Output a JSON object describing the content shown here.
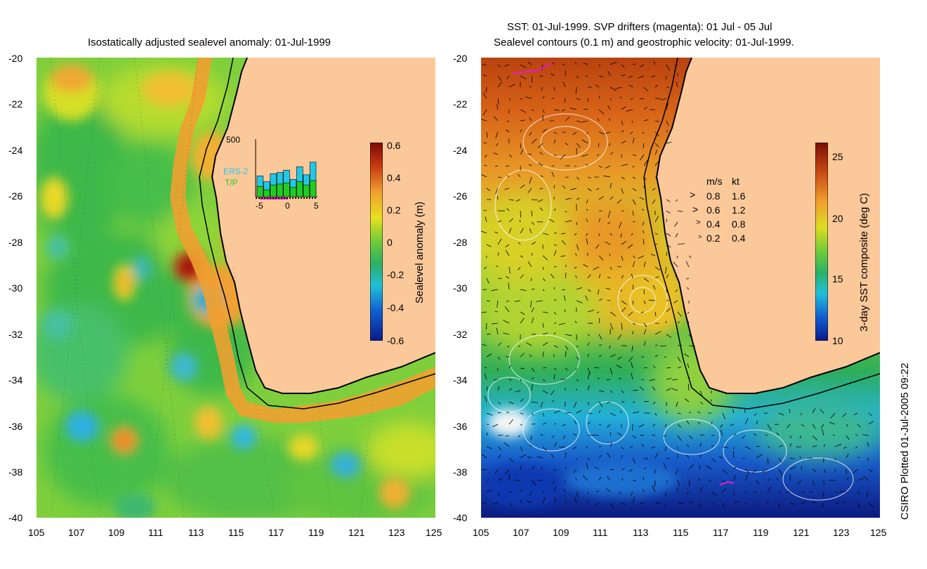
{
  "left_panel": {
    "title": "Isostatically adjusted sealevel anomaly: 01-Jul-1999",
    "colorbar": {
      "label": "Sealevel anomaly (m)",
      "ticks": [
        "0.6",
        "0.4",
        "0.2",
        "0",
        "-0.2",
        "-0.4",
        "-0.6"
      ]
    },
    "inset": {
      "ymax_label": "500",
      "x_ticks": [
        "-5",
        "0",
        "5"
      ],
      "legend": [
        {
          "name": "ERS-2",
          "color": "#22c8e6"
        },
        {
          "name": "T/P",
          "color": "#22cc22"
        }
      ],
      "ers2_counts": [
        180,
        130,
        200,
        210,
        230,
        150,
        260,
        190,
        300
      ],
      "tp_counts": [
        90,
        60,
        100,
        110,
        120,
        80,
        130,
        100,
        140
      ]
    }
  },
  "right_panel": {
    "title_line1": "SST: 01-Jul-1999. SVP drifters (magenta): 01 Jul - 05 Jul",
    "title_line2": "Sealevel contours (0.1 m) and geostrophic velocity: 01-Jul-1999.",
    "colorbar": {
      "label": "3-day SST composite (deg C)",
      "ticks": [
        "25",
        "20",
        "15",
        "10"
      ]
    },
    "velocity_legend": {
      "header_ms": "m/s",
      "header_kt": "kt",
      "rows": [
        {
          "ms": "0.8",
          "kt": "1.6"
        },
        {
          "ms": "0.6",
          "kt": "1.2"
        },
        {
          "ms": "0.4",
          "kt": "0.8"
        },
        {
          "ms": "0.2",
          "kt": "0.4"
        }
      ]
    }
  },
  "axes": {
    "lat_ticks": [
      "-20",
      "-22",
      "-24",
      "-26",
      "-28",
      "-30",
      "-32",
      "-34",
      "-36",
      "-38",
      "-40"
    ],
    "lon_ticks": [
      "105",
      "107",
      "109",
      "111",
      "113",
      "115",
      "117",
      "119",
      "121",
      "123",
      "125"
    ]
  },
  "credit": "CSIRO Plotted 01-Jul-2005 09:22",
  "colors": {
    "land": "#fbc89a",
    "ers2": "#22c8e6",
    "tp": "#22cc22",
    "drifter": "#e21ad6"
  }
}
